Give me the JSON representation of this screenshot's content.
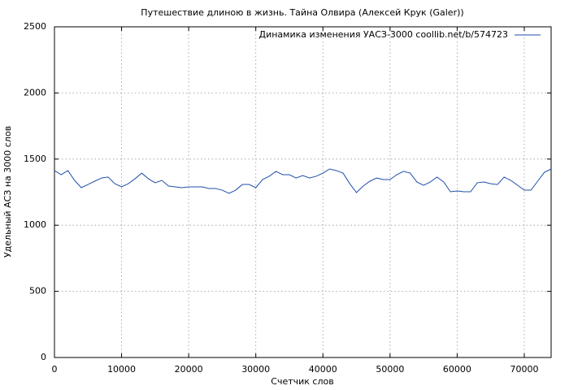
{
  "chart_data": {
    "type": "line",
    "title": "Путешествие длиною в жизнь. Тайна Олвира (Алексей Крук (Galer))",
    "x_label": "Счетчик слов",
    "y_label": "Удельный АСЗ на 3000 слов",
    "x": [
      0,
      1000,
      2000,
      3000,
      4000,
      5000,
      6000,
      7000,
      8000,
      9000,
      10000,
      11000,
      12000,
      13000,
      14000,
      15000,
      16000,
      17000,
      18000,
      19000,
      20000,
      21000,
      22000,
      23000,
      24000,
      25000,
      26000,
      27000,
      28000,
      29000,
      30000,
      31000,
      32000,
      33000,
      34000,
      35000,
      36000,
      37000,
      38000,
      39000,
      40000,
      41000,
      42000,
      43000,
      44000,
      45000,
      46000,
      47000,
      48000,
      49000,
      50000,
      51000,
      52000,
      53000,
      54000,
      55000,
      56000,
      57000,
      58000,
      59000,
      60000,
      61000,
      62000,
      63000,
      64000,
      65000,
      66000,
      67000,
      68000,
      69000,
      70000,
      71000,
      72000,
      73000,
      74000
    ],
    "series": [
      {
        "name": "Динамика изменения УАСЗ-3000 coollib.net/b/574723",
        "color": "#1f4fa8",
        "values": [
          1413,
          1382,
          1413,
          1339,
          1284,
          1308,
          1333,
          1357,
          1364,
          1314,
          1290,
          1314,
          1351,
          1394,
          1351,
          1321,
          1339,
          1296,
          1290,
          1284,
          1290,
          1290,
          1290,
          1278,
          1278,
          1265,
          1241,
          1265,
          1308,
          1308,
          1284,
          1345,
          1370,
          1407,
          1382,
          1382,
          1357,
          1376,
          1357,
          1370,
          1394,
          1425,
          1413,
          1394,
          1314,
          1247,
          1296,
          1333,
          1357,
          1345,
          1345,
          1382,
          1407,
          1394,
          1327,
          1302,
          1327,
          1364,
          1327,
          1253,
          1259,
          1253,
          1253,
          1321,
          1327,
          1314,
          1308,
          1364,
          1339,
          1302,
          1265,
          1265,
          1333,
          1400,
          1425
        ]
      }
    ],
    "xlim": [
      0,
      74000
    ],
    "ylim": [
      0,
      2500
    ],
    "xticks": [
      0,
      10000,
      20000,
      30000,
      40000,
      50000,
      60000,
      70000
    ],
    "yticks": [
      0,
      500,
      1000,
      1500,
      2000,
      2500
    ],
    "grid": true,
    "legend": "top-right"
  }
}
